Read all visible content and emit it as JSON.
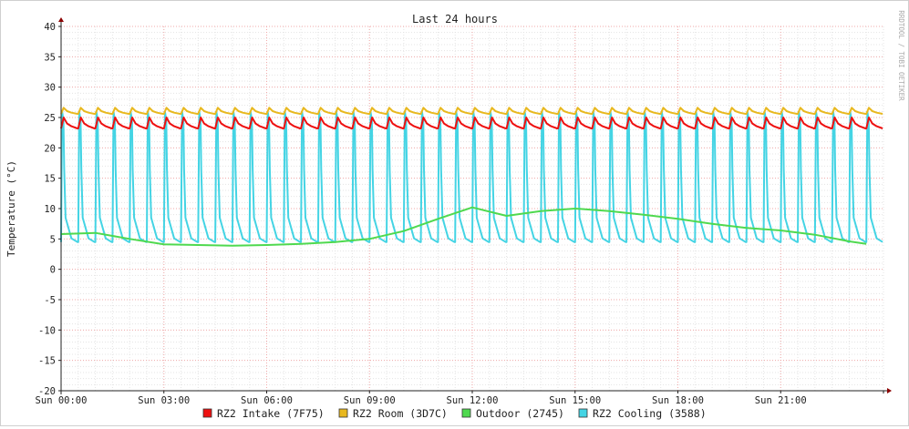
{
  "chart_data": {
    "type": "line",
    "title": "Last 24 hours",
    "ylabel": "Temperature (°C)",
    "watermark": "RRDTOOL / TOBI OETIKER",
    "ylim": [
      -20,
      40
    ],
    "y_ticks": [
      40,
      35,
      30,
      25,
      20,
      15,
      10,
      5,
      0,
      -5,
      -10,
      -15,
      -20
    ],
    "x_ticks": [
      "Sun 00:00",
      "Sun 03:00",
      "Sun 06:00",
      "Sun 09:00",
      "Sun 12:00",
      "Sun 15:00",
      "Sun 18:00",
      "Sun 21:00"
    ],
    "x_range_hours": [
      0,
      24.0
    ],
    "grid": true,
    "legend_position": "bottom",
    "series": [
      {
        "name": "RZ2 Intake (7F75)",
        "color": "#ee1111",
        "pattern": {
          "cycle_hours": 0.5,
          "min": 23.2,
          "max": 25.0
        }
      },
      {
        "name": "RZ2 Room (3D7C)",
        "color": "#e8b81f",
        "pattern": {
          "cycle_hours": 0.5,
          "min": 25.6,
          "max": 26.6
        }
      },
      {
        "name": "Outdoor (2745)",
        "color": "#4fd94f",
        "points": [
          [
            0,
            5.8
          ],
          [
            1,
            6.0
          ],
          [
            2,
            5.0
          ],
          [
            3,
            4.1
          ],
          [
            4,
            4.0
          ],
          [
            5,
            3.9
          ],
          [
            6,
            4.0
          ],
          [
            7,
            4.2
          ],
          [
            8,
            4.5
          ],
          [
            9,
            5.0
          ],
          [
            10,
            6.3
          ],
          [
            11,
            8.3
          ],
          [
            12,
            10.2
          ],
          [
            13,
            8.8
          ],
          [
            14,
            9.6
          ],
          [
            15,
            10.0
          ],
          [
            16,
            9.6
          ],
          [
            17,
            9.0
          ],
          [
            18,
            8.3
          ],
          [
            19,
            7.5
          ],
          [
            20,
            6.8
          ],
          [
            21,
            6.4
          ],
          [
            22,
            5.7
          ],
          [
            23,
            4.6
          ],
          [
            23.5,
            4.2
          ]
        ]
      },
      {
        "name": "RZ2 Cooling (3588)",
        "color": "#44d4e4",
        "pattern": {
          "cycle_hours": 0.5,
          "min": 4.5,
          "max": 26.0,
          "peak_hours": 0.07
        }
      }
    ]
  }
}
